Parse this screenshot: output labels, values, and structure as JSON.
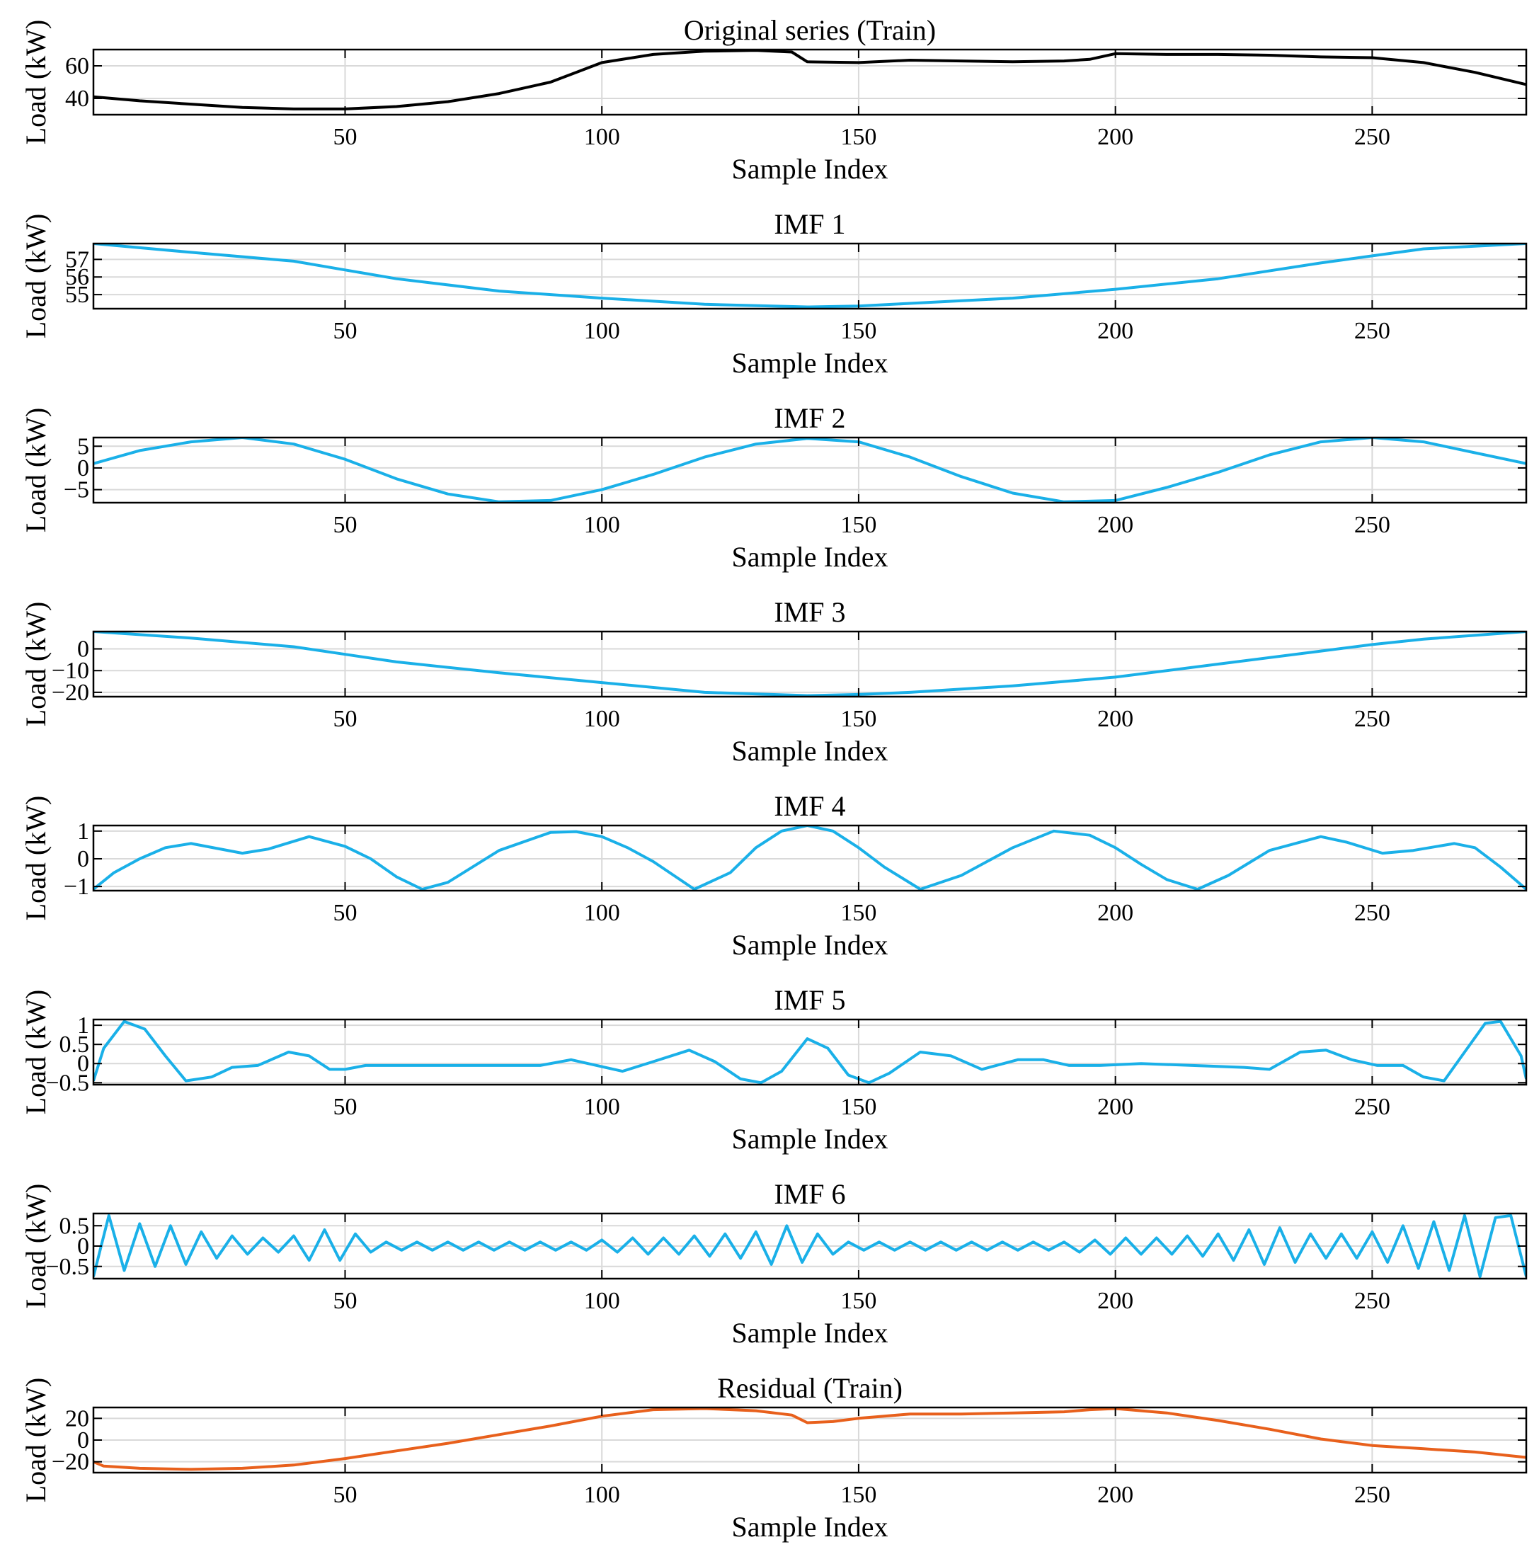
{
  "chart_data": [
    {
      "type": "line",
      "title": "Original series (Train)",
      "xlabel": "Sample Index",
      "ylabel": "Load (kW)",
      "xlim": [
        1,
        280
      ],
      "ylim": [
        30,
        70
      ],
      "xticks": [
        50,
        100,
        150,
        200,
        250
      ],
      "yticks": [
        40,
        60
      ],
      "ytick_labels": [
        "40",
        "60"
      ],
      "color": "#000000",
      "grid": true,
      "x": [
        1,
        10,
        20,
        30,
        40,
        50,
        60,
        70,
        80,
        90,
        95,
        100,
        110,
        120,
        130,
        137,
        140,
        150,
        160,
        170,
        180,
        190,
        195,
        200,
        210,
        220,
        230,
        240,
        250,
        260,
        270,
        280
      ],
      "y": [
        41,
        38.5,
        36.5,
        34.5,
        33.5,
        33.5,
        35,
        38,
        43,
        50,
        56,
        62,
        67,
        69,
        69.5,
        68.5,
        62.5,
        62,
        63.5,
        63,
        62.5,
        63,
        64,
        67.5,
        67,
        67,
        66.5,
        65.5,
        65,
        62,
        56,
        48.5
      ]
    },
    {
      "type": "line",
      "title": "IMF 1",
      "xlabel": "Sample Index",
      "ylabel": "Load (kW)",
      "xlim": [
        1,
        280
      ],
      "ylim": [
        54.2,
        57.9
      ],
      "xticks": [
        50,
        100,
        150,
        200,
        250
      ],
      "yticks": [
        55,
        56,
        57
      ],
      "ytick_labels": [
        "55",
        "56",
        "57"
      ],
      "color": "#1AB0E8",
      "grid": true,
      "x": [
        1,
        20,
        40,
        50,
        60,
        80,
        100,
        120,
        140,
        150,
        160,
        180,
        200,
        220,
        240,
        250,
        260,
        280
      ],
      "y": [
        57.9,
        57.4,
        56.9,
        56.4,
        55.9,
        55.2,
        54.8,
        54.45,
        54.3,
        54.35,
        54.5,
        54.8,
        55.3,
        55.9,
        56.8,
        57.2,
        57.6,
        57.9
      ]
    },
    {
      "type": "line",
      "title": "IMF 2",
      "xlabel": "Sample Index",
      "ylabel": "Load (kW)",
      "xlim": [
        1,
        280
      ],
      "ylim": [
        -8,
        7
      ],
      "xticks": [
        50,
        100,
        150,
        200,
        250
      ],
      "yticks": [
        -5,
        0,
        5
      ],
      "ytick_labels": [
        "−5",
        "0",
        "5"
      ],
      "color": "#1AB0E8",
      "grid": true,
      "x": [
        1,
        10,
        20,
        30,
        40,
        50,
        60,
        70,
        80,
        90,
        100,
        110,
        120,
        130,
        140,
        150,
        160,
        170,
        180,
        190,
        200,
        210,
        220,
        230,
        240,
        250,
        260,
        270,
        280
      ],
      "y": [
        1,
        4,
        6,
        7,
        5.5,
        2,
        -2.5,
        -6,
        -7.8,
        -7.5,
        -5,
        -1.5,
        2.5,
        5.5,
        6.8,
        6,
        2.5,
        -2,
        -5.8,
        -7.8,
        -7.5,
        -4.5,
        -1,
        3,
        6,
        7,
        6,
        3.5,
        1
      ]
    },
    {
      "type": "line",
      "title": "IMF 3",
      "xlabel": "Sample Index",
      "ylabel": "Load (kW)",
      "xlim": [
        1,
        280
      ],
      "ylim": [
        -22,
        8
      ],
      "xticks": [
        50,
        100,
        150,
        200,
        250
      ],
      "yticks": [
        -20,
        -10,
        0
      ],
      "ytick_labels": [
        "−20",
        "−10",
        "0"
      ],
      "color": "#1AB0E8",
      "grid": true,
      "x": [
        1,
        20,
        40,
        50,
        60,
        80,
        100,
        120,
        140,
        150,
        160,
        180,
        200,
        220,
        240,
        250,
        260,
        280
      ],
      "y": [
        8,
        5,
        1,
        -2.5,
        -6,
        -11,
        -15.5,
        -20,
        -21.5,
        -21,
        -20,
        -17,
        -13,
        -7,
        -1,
        2,
        4.5,
        8
      ]
    },
    {
      "type": "line",
      "title": "IMF 4",
      "xlabel": "Sample Index",
      "ylabel": "Load (kW)",
      "xlim": [
        1,
        280
      ],
      "ylim": [
        -1.15,
        1.2
      ],
      "xticks": [
        50,
        100,
        150,
        200,
        250
      ],
      "yticks": [
        -1,
        0,
        1
      ],
      "ytick_labels": [
        "−1",
        "0",
        "1"
      ],
      "color": "#1AB0E8",
      "grid": true,
      "x": [
        1,
        5,
        10,
        15,
        20,
        30,
        35,
        43,
        50,
        55,
        60,
        65,
        70,
        80,
        90,
        95,
        100,
        105,
        110,
        118,
        125,
        130,
        135,
        140,
        145,
        150,
        155,
        162,
        170,
        180,
        188,
        195,
        200,
        205,
        210,
        216,
        222,
        230,
        240,
        245,
        252,
        258,
        266,
        270,
        275,
        280
      ],
      "y": [
        -1.1,
        -0.5,
        0,
        0.4,
        0.55,
        0.2,
        0.35,
        0.8,
        0.45,
        0,
        -0.65,
        -1.1,
        -0.85,
        0.3,
        0.95,
        0.98,
        0.8,
        0.4,
        -0.1,
        -1.1,
        -0.5,
        0.4,
        1.0,
        1.2,
        1.0,
        0.4,
        -0.3,
        -1.1,
        -0.6,
        0.4,
        1.0,
        0.85,
        0.4,
        -0.2,
        -0.75,
        -1.1,
        -0.6,
        0.3,
        0.8,
        0.6,
        0.2,
        0.3,
        0.55,
        0.4,
        -0.3,
        -1.1
      ]
    },
    {
      "type": "line",
      "title": "IMF 5",
      "xlabel": "Sample Index",
      "ylabel": "Load (kW)",
      "xlim": [
        1,
        280
      ],
      "ylim": [
        -0.55,
        1.15
      ],
      "xticks": [
        50,
        100,
        150,
        200,
        250
      ],
      "yticks": [
        -0.5,
        0,
        0.5,
        1
      ],
      "ytick_labels": [
        "−0.5",
        "0",
        "0.5",
        "1"
      ],
      "color": "#1AB0E8",
      "grid": true,
      "x": [
        1,
        3,
        7,
        11,
        15,
        19,
        24,
        28,
        33,
        39,
        43,
        47,
        50,
        54,
        60,
        70,
        80,
        88,
        94,
        99,
        104,
        110,
        117,
        122,
        127,
        131,
        135,
        140,
        144,
        148,
        152,
        156,
        162,
        168,
        174,
        181,
        186,
        191,
        197,
        205,
        215,
        225,
        230,
        236,
        241,
        246,
        251,
        256,
        260,
        264,
        268,
        272,
        275,
        279,
        280
      ],
      "y": [
        -0.45,
        0.4,
        1.1,
        0.9,
        0.2,
        -0.45,
        -0.35,
        -0.1,
        -0.05,
        0.3,
        0.2,
        -0.15,
        -0.15,
        -0.05,
        -0.05,
        -0.05,
        -0.05,
        -0.05,
        0.1,
        -0.05,
        -0.2,
        0.05,
        0.35,
        0.05,
        -0.4,
        -0.5,
        -0.2,
        0.65,
        0.4,
        -0.3,
        -0.5,
        -0.25,
        0.3,
        0.2,
        -0.15,
        0.1,
        0.1,
        -0.05,
        -0.05,
        0,
        -0.05,
        -0.1,
        -0.15,
        0.3,
        0.35,
        0.1,
        -0.05,
        -0.05,
        -0.35,
        -0.45,
        0.3,
        1.05,
        1.1,
        0.2,
        -0.4
      ]
    },
    {
      "type": "line",
      "title": "IMF 6",
      "xlabel": "Sample Index",
      "ylabel": "Load (kW)",
      "xlim": [
        1,
        280
      ],
      "ylim": [
        -0.8,
        0.8
      ],
      "xticks": [
        50,
        100,
        150,
        200,
        250
      ],
      "yticks": [
        -0.5,
        0,
        0.5
      ],
      "ytick_labels": [
        "−0.5",
        "0",
        "0.5"
      ],
      "color": "#1AB0E8",
      "grid": true,
      "x": [
        1,
        4,
        7,
        10,
        13,
        16,
        19,
        22,
        25,
        28,
        31,
        34,
        37,
        40,
        43,
        46,
        49,
        52,
        55,
        58,
        61,
        64,
        67,
        70,
        73,
        76,
        79,
        82,
        85,
        88,
        91,
        94,
        97,
        100,
        103,
        106,
        109,
        112,
        115,
        118,
        121,
        124,
        127,
        130,
        133,
        136,
        139,
        142,
        145,
        148,
        151,
        154,
        157,
        160,
        163,
        166,
        169,
        172,
        175,
        178,
        181,
        184,
        187,
        190,
        193,
        196,
        199,
        202,
        205,
        208,
        211,
        214,
        217,
        220,
        223,
        226,
        229,
        232,
        235,
        238,
        241,
        244,
        247,
        250,
        253,
        256,
        259,
        262,
        265,
        268,
        271,
        274,
        277,
        280
      ],
      "y": [
        -0.75,
        0.75,
        -0.6,
        0.55,
        -0.5,
        0.5,
        -0.45,
        0.35,
        -0.3,
        0.25,
        -0.2,
        0.2,
        -0.15,
        0.25,
        -0.35,
        0.4,
        -0.35,
        0.3,
        -0.15,
        0.1,
        -0.1,
        0.1,
        -0.1,
        0.1,
        -0.1,
        0.1,
        -0.1,
        0.1,
        -0.1,
        0.1,
        -0.1,
        0.1,
        -0.1,
        0.15,
        -0.15,
        0.2,
        -0.2,
        0.2,
        -0.2,
        0.25,
        -0.25,
        0.3,
        -0.3,
        0.35,
        -0.45,
        0.5,
        -0.4,
        0.3,
        -0.2,
        0.1,
        -0.1,
        0.1,
        -0.1,
        0.1,
        -0.1,
        0.1,
        -0.1,
        0.1,
        -0.1,
        0.1,
        -0.1,
        0.1,
        -0.1,
        0.1,
        -0.15,
        0.15,
        -0.2,
        0.2,
        -0.2,
        0.2,
        -0.2,
        0.25,
        -0.25,
        0.3,
        -0.35,
        0.4,
        -0.45,
        0.45,
        -0.4,
        0.3,
        -0.3,
        0.3,
        -0.3,
        0.35,
        -0.4,
        0.5,
        -0.55,
        0.6,
        -0.6,
        0.75,
        -0.75,
        0.7,
        0.75,
        -0.75
      ]
    },
    {
      "type": "line",
      "title": "Residual (Train)",
      "xlabel": "Sample Index",
      "ylabel": "Load (kW)",
      "xlim": [
        1,
        280
      ],
      "ylim": [
        -30,
        30
      ],
      "xticks": [
        50,
        100,
        150,
        200,
        250
      ],
      "yticks": [
        -20,
        0,
        20
      ],
      "ytick_labels": [
        "−20",
        "0",
        "20"
      ],
      "color": "#E8601C",
      "grid": true,
      "x": [
        1,
        3,
        10,
        20,
        30,
        40,
        50,
        60,
        70,
        80,
        90,
        100,
        110,
        120,
        130,
        137,
        140,
        145,
        150,
        155,
        160,
        170,
        180,
        190,
        195,
        200,
        205,
        210,
        220,
        230,
        240,
        250,
        260,
        270,
        276,
        280
      ],
      "y": [
        -20,
        -24,
        -26,
        -27,
        -26,
        -23,
        -17,
        -10,
        -3,
        5,
        13,
        22,
        28,
        29,
        27,
        23,
        16,
        17,
        20,
        22,
        24,
        24,
        25,
        26,
        28,
        29,
        27,
        25,
        18,
        10,
        1,
        -5,
        -8,
        -11,
        -14,
        -16
      ]
    }
  ]
}
